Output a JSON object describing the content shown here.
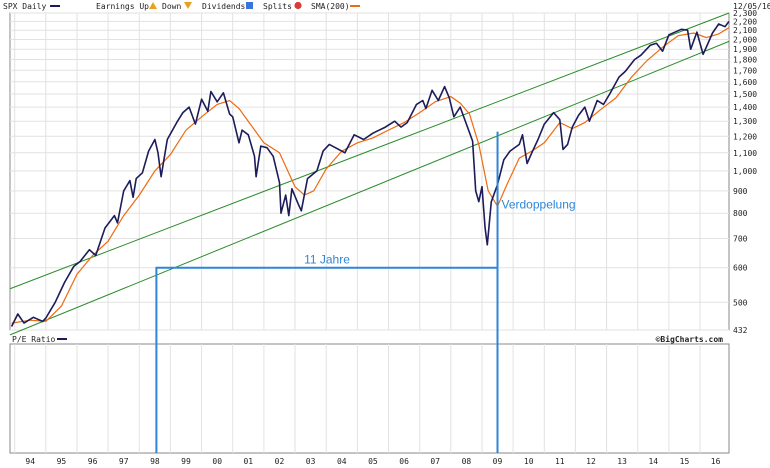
{
  "legend": {
    "symbol": "SPX Daily",
    "earnings_up": "Earnings Up",
    "down": "Down",
    "dividends": "Dividends",
    "splits": "Splits",
    "sma": "SMA(200)",
    "date": "12/05/16"
  },
  "lower_panel": {
    "title": "P/E Ratio",
    "brand": "©BigCharts.com"
  },
  "annotations": {
    "span_label": "11 Jahre",
    "doubling_label": "Verdoppelung"
  },
  "colors": {
    "price": "#1c1c5a",
    "sma": "#ef6a10",
    "channel": "#2a8c2a",
    "annotation": "#2f86d6",
    "earnings_up": "#e8a020",
    "down": "#e8a020",
    "dividends": "#3b74d8",
    "splits": "#d83b3b"
  },
  "chart_data": {
    "type": "line",
    "scale": "log",
    "ylim": [
      432,
      2300
    ],
    "xlim": [
      1993.85,
      2016.93
    ],
    "y_ticks": [
      432,
      500,
      600,
      700,
      800,
      900,
      1000,
      1100,
      1200,
      1300,
      1400,
      1500,
      1600,
      1700,
      1800,
      1900,
      2000,
      2100,
      2200,
      2300
    ],
    "y_tick_labels": [
      "432",
      "500",
      "600",
      "700",
      "800",
      "900",
      "1,000",
      "1,100",
      "1,200",
      "1,300",
      "1,400",
      "1,500",
      "1,600",
      "1,700",
      "1,800",
      "1,900",
      "2,000",
      "2,100",
      "2,200",
      "2,300"
    ],
    "x_ticks": [
      1994,
      1995,
      1996,
      1997,
      1998,
      1999,
      2000,
      2001,
      2002,
      2003,
      2004,
      2005,
      2006,
      2007,
      2008,
      2009,
      2010,
      2011,
      2012,
      2013,
      2014,
      2015,
      2016
    ],
    "x_tick_labels": [
      "94",
      "95",
      "96",
      "97",
      "98",
      "99",
      "00",
      "01",
      "02",
      "03",
      "04",
      "05",
      "06",
      "07",
      "08",
      "09",
      "10",
      "11",
      "12",
      "13",
      "14",
      "15",
      "16"
    ],
    "series": [
      {
        "name": "SPX Daily",
        "points": [
          [
            1993.9,
            440
          ],
          [
            1994.1,
            470
          ],
          [
            1994.3,
            448
          ],
          [
            1994.6,
            462
          ],
          [
            1994.9,
            452
          ],
          [
            1995.0,
            460
          ],
          [
            1995.3,
            500
          ],
          [
            1995.6,
            555
          ],
          [
            1995.9,
            605
          ],
          [
            1996.1,
            620
          ],
          [
            1996.4,
            660
          ],
          [
            1996.6,
            640
          ],
          [
            1996.9,
            740
          ],
          [
            1997.2,
            790
          ],
          [
            1997.3,
            760
          ],
          [
            1997.5,
            900
          ],
          [
            1997.7,
            950
          ],
          [
            1997.8,
            870
          ],
          [
            1997.9,
            960
          ],
          [
            1998.1,
            990
          ],
          [
            1998.3,
            1110
          ],
          [
            1998.5,
            1180
          ],
          [
            1998.6,
            1100
          ],
          [
            1998.7,
            970
          ],
          [
            1998.9,
            1180
          ],
          [
            1999.2,
            1290
          ],
          [
            1999.4,
            1360
          ],
          [
            1999.6,
            1400
          ],
          [
            1999.8,
            1280
          ],
          [
            2000.0,
            1460
          ],
          [
            2000.2,
            1370
          ],
          [
            2000.3,
            1520
          ],
          [
            2000.5,
            1440
          ],
          [
            2000.7,
            1510
          ],
          [
            2000.9,
            1350
          ],
          [
            2001.0,
            1330
          ],
          [
            2001.2,
            1160
          ],
          [
            2001.3,
            1240
          ],
          [
            2001.5,
            1210
          ],
          [
            2001.7,
            1080
          ],
          [
            2001.75,
            970
          ],
          [
            2001.9,
            1140
          ],
          [
            2002.1,
            1130
          ],
          [
            2002.3,
            1080
          ],
          [
            2002.5,
            940
          ],
          [
            2002.55,
            800
          ],
          [
            2002.7,
            880
          ],
          [
            2002.8,
            790
          ],
          [
            2002.9,
            910
          ],
          [
            2003.1,
            840
          ],
          [
            2003.2,
            810
          ],
          [
            2003.4,
            960
          ],
          [
            2003.7,
            1000
          ],
          [
            2003.9,
            1110
          ],
          [
            2004.1,
            1150
          ],
          [
            2004.4,
            1120
          ],
          [
            2004.6,
            1100
          ],
          [
            2004.9,
            1210
          ],
          [
            2005.2,
            1180
          ],
          [
            2005.5,
            1220
          ],
          [
            2005.9,
            1260
          ],
          [
            2006.2,
            1300
          ],
          [
            2006.4,
            1260
          ],
          [
            2006.6,
            1290
          ],
          [
            2006.9,
            1420
          ],
          [
            2007.1,
            1450
          ],
          [
            2007.2,
            1390
          ],
          [
            2007.4,
            1530
          ],
          [
            2007.6,
            1450
          ],
          [
            2007.8,
            1560
          ],
          [
            2007.95,
            1470
          ],
          [
            2008.1,
            1330
          ],
          [
            2008.3,
            1400
          ],
          [
            2008.5,
            1280
          ],
          [
            2008.7,
            1170
          ],
          [
            2008.8,
            900
          ],
          [
            2008.9,
            850
          ],
          [
            2009.0,
            920
          ],
          [
            2009.1,
            740
          ],
          [
            2009.17,
            677
          ],
          [
            2009.3,
            850
          ],
          [
            2009.5,
            930
          ],
          [
            2009.7,
            1060
          ],
          [
            2009.9,
            1110
          ],
          [
            2010.2,
            1150
          ],
          [
            2010.3,
            1210
          ],
          [
            2010.45,
            1040
          ],
          [
            2010.6,
            1100
          ],
          [
            2010.8,
            1180
          ],
          [
            2011.0,
            1280
          ],
          [
            2011.3,
            1360
          ],
          [
            2011.5,
            1310
          ],
          [
            2011.6,
            1120
          ],
          [
            2011.75,
            1150
          ],
          [
            2011.9,
            1260
          ],
          [
            2012.1,
            1340
          ],
          [
            2012.3,
            1400
          ],
          [
            2012.45,
            1300
          ],
          [
            2012.7,
            1450
          ],
          [
            2012.9,
            1420
          ],
          [
            2013.1,
            1500
          ],
          [
            2013.4,
            1640
          ],
          [
            2013.6,
            1690
          ],
          [
            2013.9,
            1800
          ],
          [
            2014.1,
            1840
          ],
          [
            2014.4,
            1940
          ],
          [
            2014.6,
            1960
          ],
          [
            2014.8,
            1880
          ],
          [
            2015.0,
            2050
          ],
          [
            2015.4,
            2110
          ],
          [
            2015.6,
            2100
          ],
          [
            2015.7,
            1900
          ],
          [
            2015.9,
            2080
          ],
          [
            2016.1,
            1850
          ],
          [
            2016.2,
            1920
          ],
          [
            2016.4,
            2070
          ],
          [
            2016.6,
            2170
          ],
          [
            2016.8,
            2140
          ],
          [
            2016.93,
            2200
          ]
        ]
      },
      {
        "name": "SMA(200)",
        "points": [
          [
            1993.9,
            448
          ],
          [
            1994.5,
            455
          ],
          [
            1995.0,
            452
          ],
          [
            1995.5,
            490
          ],
          [
            1996.0,
            580
          ],
          [
            1996.5,
            640
          ],
          [
            1997.0,
            690
          ],
          [
            1997.5,
            790
          ],
          [
            1998.0,
            880
          ],
          [
            1998.5,
            1000
          ],
          [
            1999.0,
            1090
          ],
          [
            1999.5,
            1240
          ],
          [
            2000.0,
            1330
          ],
          [
            2000.5,
            1420
          ],
          [
            2000.9,
            1450
          ],
          [
            2001.2,
            1390
          ],
          [
            2001.6,
            1270
          ],
          [
            2002.0,
            1160
          ],
          [
            2002.5,
            1100
          ],
          [
            2003.0,
            920
          ],
          [
            2003.3,
            880
          ],
          [
            2003.6,
            900
          ],
          [
            2004.0,
            1010
          ],
          [
            2004.5,
            1110
          ],
          [
            2005.0,
            1160
          ],
          [
            2005.5,
            1190
          ],
          [
            2006.0,
            1240
          ],
          [
            2006.5,
            1290
          ],
          [
            2007.0,
            1360
          ],
          [
            2007.5,
            1440
          ],
          [
            2008.0,
            1480
          ],
          [
            2008.3,
            1430
          ],
          [
            2008.6,
            1350
          ],
          [
            2008.9,
            1150
          ],
          [
            2009.2,
            900
          ],
          [
            2009.5,
            830
          ],
          [
            2009.8,
            930
          ],
          [
            2010.2,
            1070
          ],
          [
            2010.6,
            1110
          ],
          [
            2011.0,
            1160
          ],
          [
            2011.5,
            1290
          ],
          [
            2011.9,
            1250
          ],
          [
            2012.3,
            1290
          ],
          [
            2012.8,
            1380
          ],
          [
            2013.3,
            1470
          ],
          [
            2013.8,
            1640
          ],
          [
            2014.3,
            1790
          ],
          [
            2014.8,
            1920
          ],
          [
            2015.3,
            2040
          ],
          [
            2015.8,
            2070
          ],
          [
            2016.2,
            2020
          ],
          [
            2016.6,
            2060
          ],
          [
            2016.93,
            2130
          ]
        ]
      },
      {
        "name": "Trend upper",
        "points": [
          [
            1993.85,
            537
          ],
          [
            2016.93,
            2300
          ]
        ]
      },
      {
        "name": "Trend lower",
        "points": [
          [
            1993.85,
            421
          ],
          [
            2016.93,
            1980
          ]
        ]
      }
    ],
    "annotations": [
      {
        "text": "11 Jahre",
        "type": "span",
        "x_start": 1998.55,
        "x_end": 2009.5,
        "y": 600
      },
      {
        "text": "Verdoppelung",
        "type": "vertical",
        "x": 2009.5,
        "y_from": 600,
        "y_to": 1230
      }
    ]
  }
}
